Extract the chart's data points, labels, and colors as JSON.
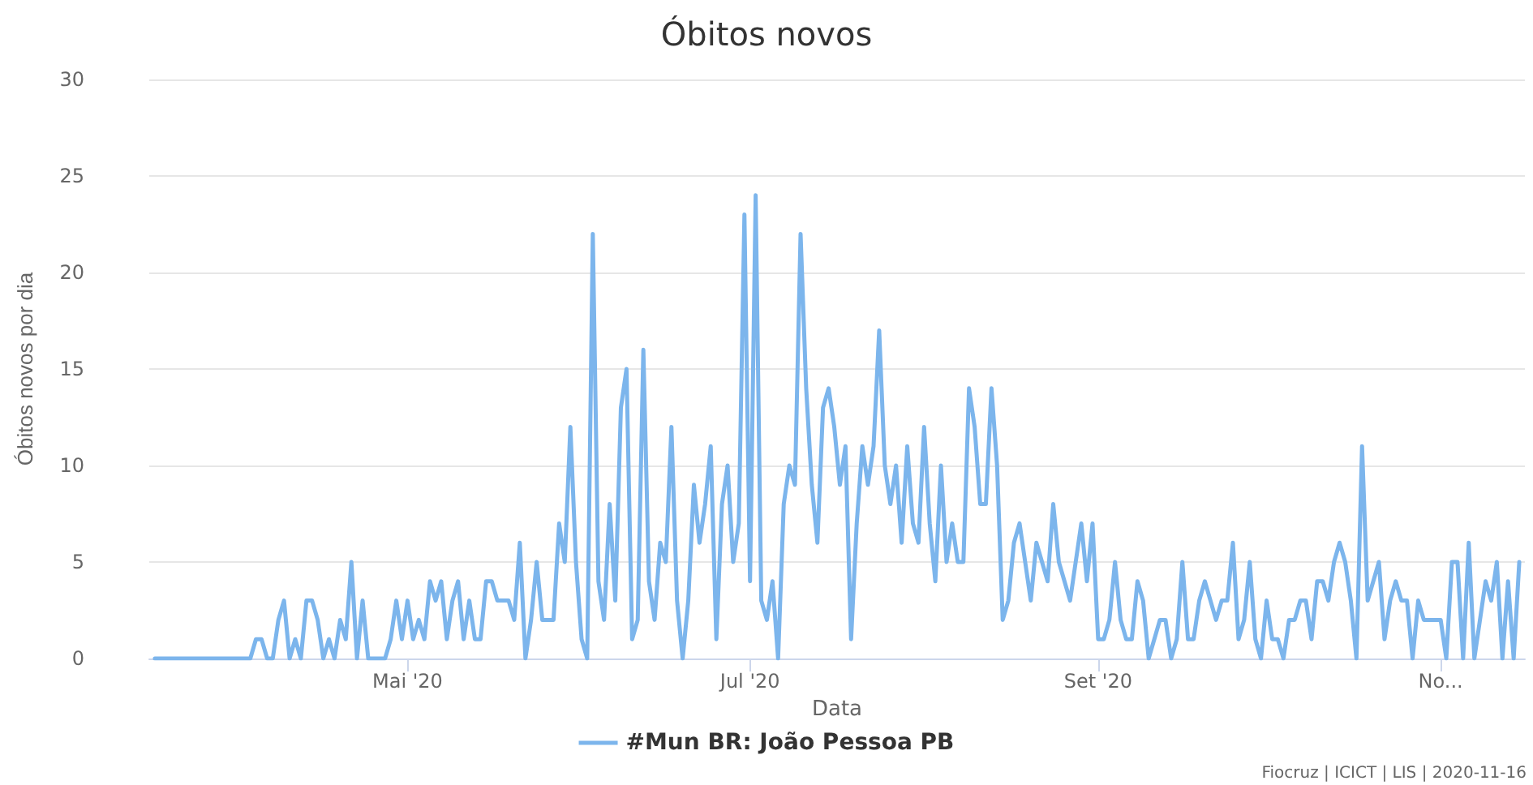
{
  "chart_data": {
    "type": "line",
    "title": "Óbitos novos",
    "xlabel": "Data",
    "ylabel": "Óbitos novos por dia",
    "annotations": [
      "Fiocruz | ICICT | LIS | 2020-11-16"
    ],
    "x": [
      "2020-03-17",
      "2020-04-03",
      "2020-04-04",
      "2020-04-05",
      "2020-04-06",
      "2020-04-07",
      "2020-04-08",
      "2020-04-09",
      "2020-04-10",
      "2020-04-11",
      "2020-04-12",
      "2020-04-13",
      "2020-04-14",
      "2020-04-15",
      "2020-04-16",
      "2020-04-17",
      "2020-04-18",
      "2020-04-19",
      "2020-04-20",
      "2020-04-21",
      "2020-04-22",
      "2020-04-23",
      "2020-04-24",
      "2020-04-25",
      "2020-04-26",
      "2020-04-27",
      "2020-04-28",
      "2020-04-29",
      "2020-04-30",
      "2020-05-01",
      "2020-05-02",
      "2020-05-03",
      "2020-05-04",
      "2020-05-05",
      "2020-05-06",
      "2020-05-07",
      "2020-05-08",
      "2020-05-09",
      "2020-05-10",
      "2020-05-11",
      "2020-05-12",
      "2020-05-13",
      "2020-05-14",
      "2020-05-15",
      "2020-05-16",
      "2020-05-17",
      "2020-05-18",
      "2020-05-19",
      "2020-05-20",
      "2020-05-21",
      "2020-05-22",
      "2020-05-23",
      "2020-05-24",
      "2020-05-25",
      "2020-05-26",
      "2020-05-27",
      "2020-05-28",
      "2020-05-29",
      "2020-05-30",
      "2020-05-31",
      "2020-06-01",
      "2020-06-02",
      "2020-06-03",
      "2020-06-04",
      "2020-06-05",
      "2020-06-06",
      "2020-06-07",
      "2020-06-08",
      "2020-06-09",
      "2020-06-10",
      "2020-06-11",
      "2020-06-12",
      "2020-06-13",
      "2020-06-14",
      "2020-06-15",
      "2020-06-16",
      "2020-06-17",
      "2020-06-18",
      "2020-06-19",
      "2020-06-20",
      "2020-06-21",
      "2020-06-22",
      "2020-06-23",
      "2020-06-24",
      "2020-06-25",
      "2020-06-26",
      "2020-06-27",
      "2020-06-28",
      "2020-06-29",
      "2020-06-30",
      "2020-07-01",
      "2020-07-02",
      "2020-07-03",
      "2020-07-04",
      "2020-07-05",
      "2020-07-06",
      "2020-07-07",
      "2020-07-08",
      "2020-07-09",
      "2020-07-10",
      "2020-07-11",
      "2020-07-12",
      "2020-07-13",
      "2020-07-14",
      "2020-07-15",
      "2020-07-16",
      "2020-07-17",
      "2020-07-18",
      "2020-07-19",
      "2020-07-20",
      "2020-07-21",
      "2020-07-22",
      "2020-07-23",
      "2020-07-24",
      "2020-07-25",
      "2020-07-26",
      "2020-07-27",
      "2020-07-28",
      "2020-07-29",
      "2020-07-30",
      "2020-07-31",
      "2020-08-01",
      "2020-08-02",
      "2020-08-03",
      "2020-08-04",
      "2020-08-05",
      "2020-08-06",
      "2020-08-07",
      "2020-08-08",
      "2020-08-09",
      "2020-08-10",
      "2020-08-11",
      "2020-08-12",
      "2020-08-13",
      "2020-08-14",
      "2020-08-15",
      "2020-08-16",
      "2020-08-17",
      "2020-08-18",
      "2020-08-19",
      "2020-08-20",
      "2020-08-21",
      "2020-08-22",
      "2020-08-23",
      "2020-08-24",
      "2020-08-25",
      "2020-08-26",
      "2020-08-27",
      "2020-08-28",
      "2020-08-29",
      "2020-08-30",
      "2020-08-31",
      "2020-09-01",
      "2020-09-02",
      "2020-09-03",
      "2020-09-04",
      "2020-09-05",
      "2020-09-06",
      "2020-09-07",
      "2020-09-08",
      "2020-09-09",
      "2020-09-10",
      "2020-09-11",
      "2020-09-12",
      "2020-09-13",
      "2020-09-14",
      "2020-09-15",
      "2020-09-16",
      "2020-09-17",
      "2020-09-18",
      "2020-09-19",
      "2020-09-20",
      "2020-09-21",
      "2020-09-22",
      "2020-09-23",
      "2020-09-24",
      "2020-09-25",
      "2020-09-26",
      "2020-09-27",
      "2020-09-28",
      "2020-09-29",
      "2020-09-30",
      "2020-10-01",
      "2020-10-02",
      "2020-10-03",
      "2020-10-04",
      "2020-10-05",
      "2020-10-06",
      "2020-10-07",
      "2020-10-08",
      "2020-10-09",
      "2020-10-10",
      "2020-10-11",
      "2020-10-12",
      "2020-10-13",
      "2020-10-14",
      "2020-10-15",
      "2020-10-16",
      "2020-10-17",
      "2020-10-18",
      "2020-10-19",
      "2020-10-20",
      "2020-10-21",
      "2020-10-22",
      "2020-10-23",
      "2020-10-24",
      "2020-10-25",
      "2020-10-26",
      "2020-10-27",
      "2020-10-28",
      "2020-10-29",
      "2020-10-30",
      "2020-10-31",
      "2020-11-01",
      "2020-11-02",
      "2020-11-03",
      "2020-11-04",
      "2020-11-05",
      "2020-11-06",
      "2020-11-07",
      "2020-11-08",
      "2020-11-09",
      "2020-11-10",
      "2020-11-11",
      "2020-11-12",
      "2020-11-13",
      "2020-11-14",
      "2020-11-15"
    ],
    "series": [
      {
        "name": "#Mun BR: João Pessoa PB",
        "color": "#7cb5ec",
        "values": [
          0,
          0,
          1,
          1,
          0,
          0,
          2,
          3,
          0,
          1,
          0,
          3,
          3,
          2,
          0,
          1,
          0,
          2,
          1,
          5,
          0,
          3,
          0,
          0,
          0,
          0,
          1,
          3,
          1,
          3,
          1,
          2,
          1,
          4,
          3,
          4,
          1,
          3,
          4,
          1,
          3,
          1,
          1,
          4,
          4,
          3,
          3,
          3,
          2,
          6,
          0,
          2,
          5,
          2,
          2,
          2,
          7,
          5,
          12,
          5,
          1,
          0,
          22,
          4,
          2,
          8,
          3,
          13,
          15,
          1,
          2,
          16,
          4,
          2,
          6,
          5,
          12,
          3,
          0,
          3,
          9,
          6,
          8,
          11,
          1,
          8,
          10,
          5,
          7,
          23,
          4,
          24,
          3,
          2,
          4,
          0,
          8,
          10,
          9,
          22,
          14,
          9,
          6,
          13,
          14,
          12,
          9,
          11,
          1,
          7,
          11,
          9,
          11,
          17,
          10,
          8,
          10,
          6,
          11,
          7,
          6,
          12,
          7,
          4,
          10,
          5,
          7,
          5,
          5,
          14,
          12,
          8,
          8,
          14,
          10,
          2,
          3,
          6,
          7,
          5,
          3,
          6,
          5,
          4,
          8,
          5,
          4,
          3,
          5,
          7,
          4,
          7,
          1,
          1,
          2,
          5,
          2,
          1,
          1,
          4,
          3,
          0,
          1,
          2,
          2,
          0,
          1,
          5,
          1,
          1,
          3,
          4,
          3,
          2,
          3,
          3,
          6,
          1,
          2,
          5,
          1,
          0,
          3,
          1,
          1,
          0,
          2,
          2,
          3,
          3,
          1,
          4,
          4,
          3,
          5,
          6,
          5,
          3,
          0,
          11,
          3,
          4,
          5,
          1,
          3,
          4,
          3,
          3,
          0,
          3,
          2,
          2,
          2,
          2,
          0,
          5,
          5,
          0,
          6,
          0,
          2,
          4,
          3,
          5,
          0,
          4,
          0,
          5
        ]
      }
    ],
    "xlim": [
      "2020-03-16",
      "2020-11-16"
    ],
    "xticks": [
      {
        "value": "2020-05-01",
        "label": "Mai '20"
      },
      {
        "value": "2020-07-01",
        "label": "Jul '20"
      },
      {
        "value": "2020-09-01",
        "label": "Set '20"
      },
      {
        "value": "2020-11-01",
        "label": "No..."
      }
    ],
    "ylim": [
      0,
      30
    ],
    "yticks": [
      0,
      5,
      10,
      15,
      20,
      25,
      30
    ],
    "grid": "y",
    "legend": "bottom",
    "marker": "none",
    "line_style": "solid"
  }
}
